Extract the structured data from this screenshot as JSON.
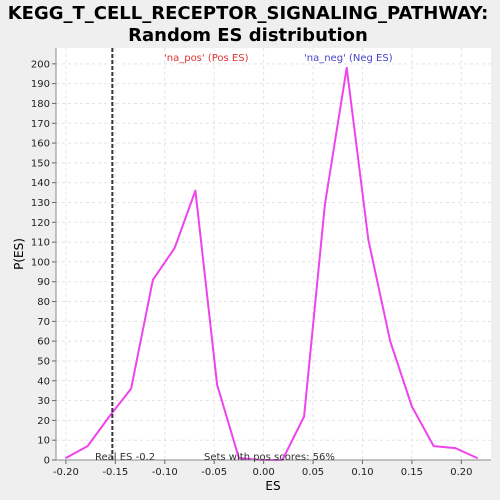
{
  "colors": {
    "background": "#efefef",
    "plot_background": "#ffffff",
    "series": "#ee44ee",
    "pos_legend": "#dd3333",
    "neg_legend": "#4444cc",
    "real_es_line": "#333333"
  },
  "chart_data": {
    "type": "line",
    "title_line1": "KEGG_T_CELL_RECEPTOR_SIGNALING_PATHWAY:",
    "title_line2": "Random ES distribution",
    "xlabel": "ES",
    "ylabel": "P(ES)",
    "xlim": [
      -0.21,
      0.23
    ],
    "ylim": [
      0,
      208
    ],
    "x_ticks": [
      -0.2,
      -0.15,
      -0.1,
      -0.05,
      0.0,
      0.05,
      0.1,
      0.15,
      0.2
    ],
    "x_tick_labels": [
      "-0.20",
      "-0.15",
      "-0.10",
      "-0.05",
      "0.00",
      "0.05",
      "0.10",
      "0.15",
      "0.20"
    ],
    "y_ticks": [
      0,
      10,
      20,
      30,
      40,
      50,
      60,
      70,
      80,
      90,
      100,
      110,
      120,
      130,
      140,
      150,
      160,
      170,
      180,
      190,
      200
    ],
    "y_tick_labels": [
      "0",
      "10",
      "20",
      "30",
      "40",
      "50",
      "60",
      "70",
      "80",
      "90",
      "100",
      "110",
      "120",
      "130",
      "140",
      "150",
      "160",
      "170",
      "180",
      "190",
      "200"
    ],
    "grid": true,
    "legend": {
      "pos_label": "'na_pos' (Pos ES)",
      "neg_label": "'na_neg' (Neg ES)"
    },
    "series": [
      {
        "x": [
          -0.2,
          -0.178,
          -0.156,
          -0.134,
          -0.112,
          -0.09,
          -0.069,
          -0.047,
          -0.025,
          -0.003,
          0.019,
          0.041,
          0.062,
          0.084,
          0.106,
          0.128,
          0.15,
          0.172,
          0.194,
          0.216
        ],
        "y": [
          1,
          7,
          22,
          36,
          91,
          107,
          136,
          38,
          1,
          0,
          0,
          22,
          129,
          198,
          111,
          60,
          27,
          7,
          6,
          1
        ]
      }
    ],
    "real_es": {
      "value": -0.153,
      "label": "Real ES -0.2"
    },
    "annotation": "Sets with pos scores: 56%"
  }
}
